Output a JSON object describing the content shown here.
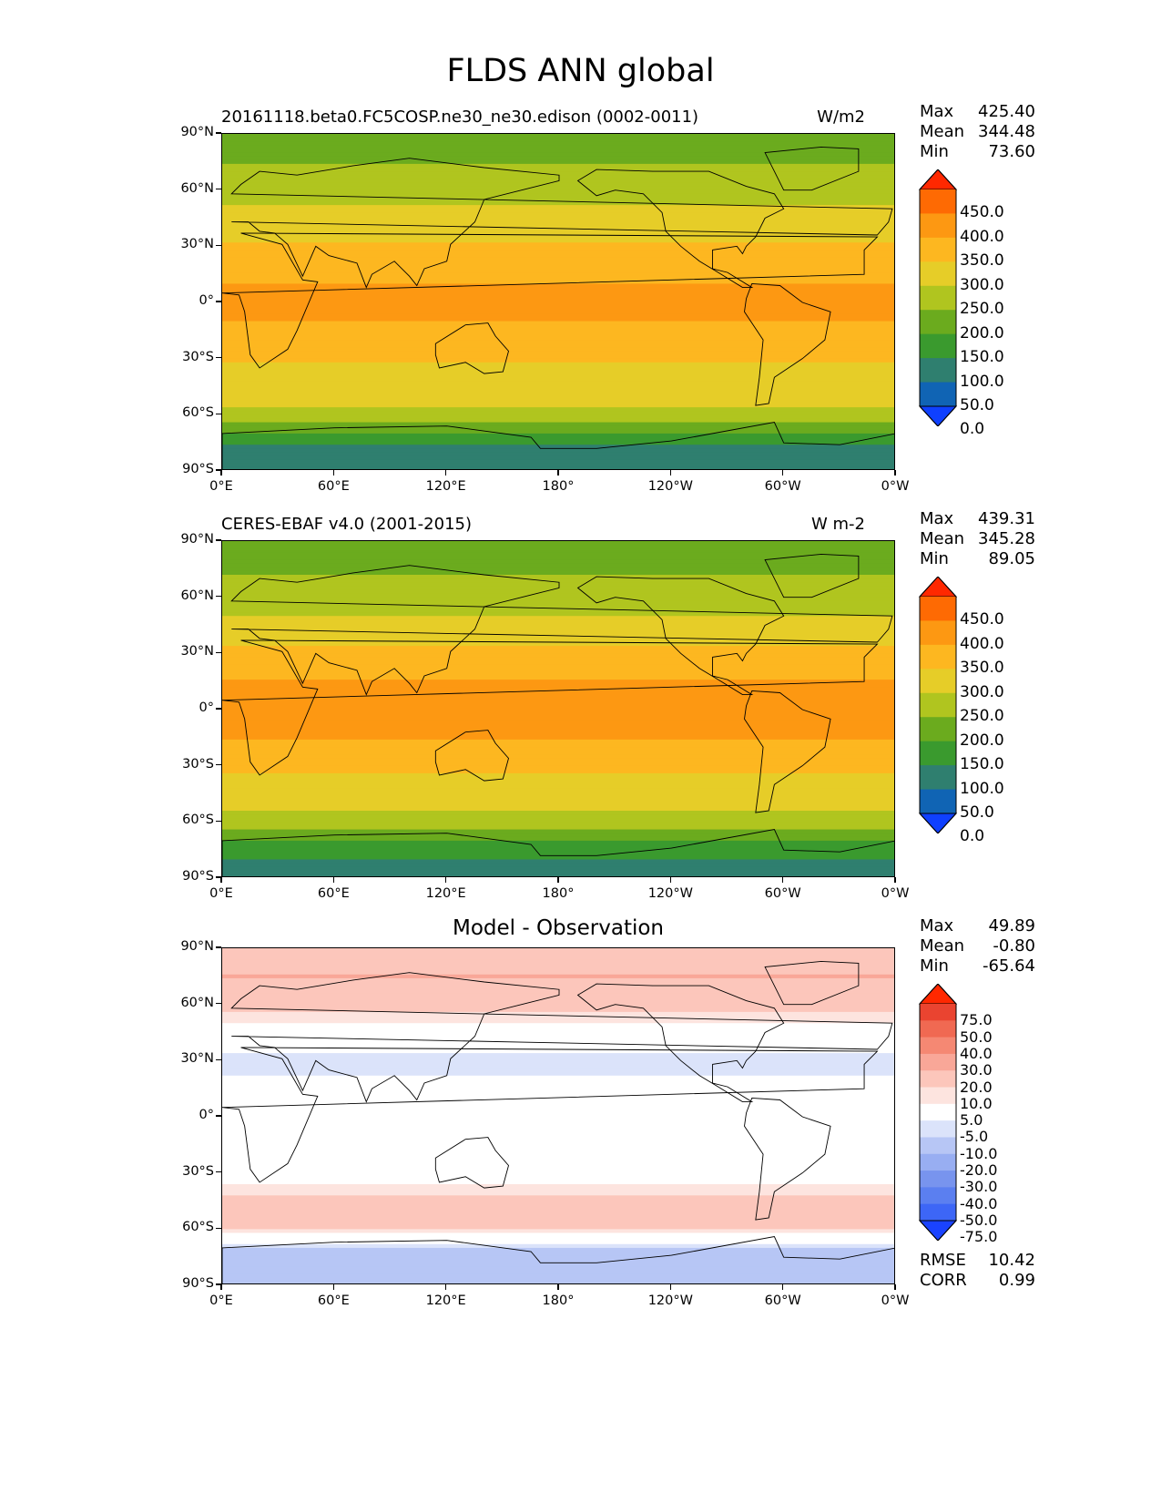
{
  "figure_title": "FLDS ANN global",
  "axes": {
    "lat_labels": [
      "90°N",
      "60°N",
      "30°N",
      "0°",
      "30°S",
      "60°S",
      "90°S"
    ],
    "lon_labels": [
      "0°E",
      "60°E",
      "120°E",
      "180°",
      "120°W",
      "60°W",
      "0°W"
    ]
  },
  "colors": {
    "flds_levels": [
      "#0f40ff",
      "#1064b4",
      "#2f7f6f",
      "#3a9a2e",
      "#6bab1e",
      "#b0c51f",
      "#e6cd28",
      "#fdb720",
      "#fd9812",
      "#fe6a03",
      "#ff2800"
    ],
    "diff_levels": [
      "#1a43ff",
      "#3d66f6",
      "#5b7ff0",
      "#7894ee",
      "#98aef2",
      "#b7c6f5",
      "#dbe3fa",
      "#ffffff",
      "#fde4df",
      "#fcc6bb",
      "#f9a798",
      "#f58873",
      "#f06952",
      "#ea4430",
      "#ff2800"
    ]
  },
  "chart_data": [
    {
      "type": "heatmap",
      "panel": "model",
      "title_left": "20161118.beta0.FC5COSP.ne30_ne30.edison (0002-0011)",
      "title_right": "W/m2",
      "stats": {
        "max_label": "Max",
        "max": "425.40",
        "mean_label": "Mean",
        "mean": "344.48",
        "min_label": "Min",
        "min": "73.60"
      },
      "colorbar_levels": [
        "450.0",
        "400.0",
        "350.0",
        "300.0",
        "250.0",
        "200.0",
        "150.0",
        "100.0",
        "50.0",
        "0.0"
      ],
      "xlim": [
        0,
        360
      ],
      "ylim": [
        -90,
        90
      ],
      "zonal_profile": [
        {
          "lat": 90,
          "value": 230
        },
        {
          "lat": 75,
          "value": 245
        },
        {
          "lat": 60,
          "value": 285
        },
        {
          "lat": 45,
          "value": 315
        },
        {
          "lat": 30,
          "value": 355
        },
        {
          "lat": 15,
          "value": 395
        },
        {
          "lat": 0,
          "value": 410
        },
        {
          "lat": -15,
          "value": 395
        },
        {
          "lat": -30,
          "value": 355
        },
        {
          "lat": -45,
          "value": 320
        },
        {
          "lat": -60,
          "value": 290
        },
        {
          "lat": -75,
          "value": 150
        },
        {
          "lat": -90,
          "value": 120
        }
      ]
    },
    {
      "type": "heatmap",
      "panel": "observation",
      "title_left": "CERES-EBAF v4.0 (2001-2015)",
      "title_right": "W m-2",
      "stats": {
        "max_label": "Max",
        "max": "439.31",
        "mean_label": "Mean",
        "mean": "345.28",
        "min_label": "Min",
        "min": "89.05"
      },
      "colorbar_levels": [
        "450.0",
        "400.0",
        "350.0",
        "300.0",
        "250.0",
        "200.0",
        "150.0",
        "100.0",
        "50.0",
        "0.0"
      ],
      "xlim": [
        0,
        360
      ],
      "ylim": [
        -90,
        90
      ],
      "zonal_profile": [
        {
          "lat": 90,
          "value": 225
        },
        {
          "lat": 75,
          "value": 240
        },
        {
          "lat": 60,
          "value": 280
        },
        {
          "lat": 45,
          "value": 310
        },
        {
          "lat": 30,
          "value": 360
        },
        {
          "lat": 15,
          "value": 400
        },
        {
          "lat": 0,
          "value": 415
        },
        {
          "lat": -15,
          "value": 400
        },
        {
          "lat": -30,
          "value": 360
        },
        {
          "lat": -45,
          "value": 320
        },
        {
          "lat": -60,
          "value": 285
        },
        {
          "lat": -75,
          "value": 165
        },
        {
          "lat": -90,
          "value": 125
        }
      ]
    },
    {
      "type": "heatmap",
      "panel": "difference",
      "title_center": "Model - Observation",
      "stats": {
        "max_label": "Max",
        "max": "49.89",
        "mean_label": "Mean",
        "mean": "-0.80",
        "min_label": "Min",
        "min": "-65.64"
      },
      "metrics": {
        "rmse_label": "RMSE",
        "rmse": "10.42",
        "corr_label": "CORR",
        "corr": "0.99"
      },
      "colorbar_levels": [
        "75.0",
        "50.0",
        "40.0",
        "30.0",
        "20.0",
        "10.0",
        "5.0",
        "-5.0",
        "-10.0",
        "-20.0",
        "-30.0",
        "-40.0",
        "-50.0",
        "-75.0"
      ],
      "xlim": [
        0,
        360
      ],
      "ylim": [
        -90,
        90
      ],
      "zonal_profile": [
        {
          "lat": 90,
          "value": 15
        },
        {
          "lat": 75,
          "value": 20
        },
        {
          "lat": 60,
          "value": 12
        },
        {
          "lat": 45,
          "value": 2
        },
        {
          "lat": 30,
          "value": -8
        },
        {
          "lat": 15,
          "value": -3
        },
        {
          "lat": 0,
          "value": 0
        },
        {
          "lat": -15,
          "value": -5
        },
        {
          "lat": -30,
          "value": 0
        },
        {
          "lat": -45,
          "value": 12
        },
        {
          "lat": -60,
          "value": 10
        },
        {
          "lat": -75,
          "value": -20
        },
        {
          "lat": -90,
          "value": -10
        }
      ]
    }
  ]
}
